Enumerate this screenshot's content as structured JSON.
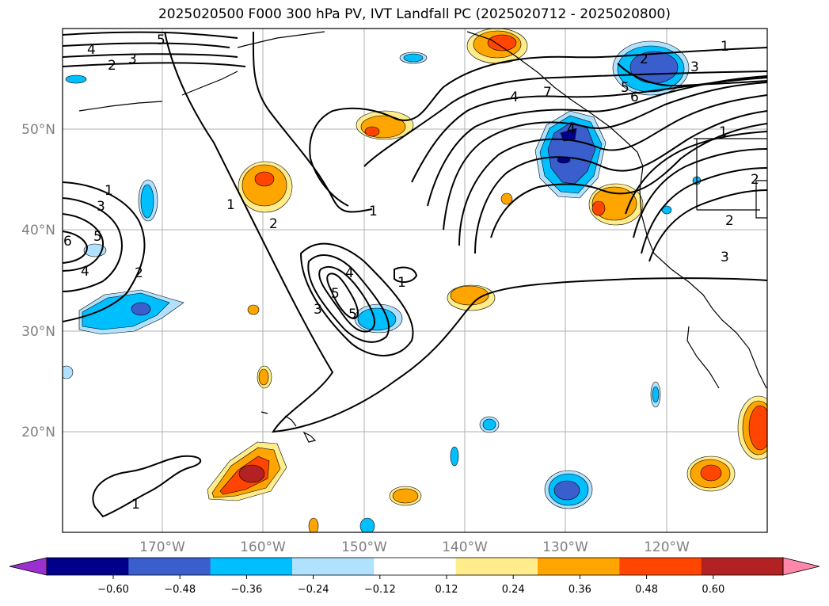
{
  "title": "2025020500 F000 300 hPa PV, IVT Landfall PC (2025020712 - 2025020800)",
  "map": {
    "lat_ticks": [
      "50°N",
      "40°N",
      "30°N",
      "20°N"
    ],
    "lon_ticks": [
      "170°W",
      "160°W",
      "150°W",
      "140°W",
      "130°W",
      "120°W"
    ],
    "contour_labels": [
      "4",
      "5",
      "3",
      "2",
      "5",
      "1",
      "1",
      "2",
      "3",
      "4",
      "6",
      "5",
      "4",
      "2",
      "1",
      "2",
      "4",
      "5",
      "3",
      "1",
      "1",
      "4",
      "7",
      "2",
      "3",
      "5",
      "6",
      "1",
      "1",
      "2",
      "3"
    ]
  },
  "colorbar": {
    "ticks": [
      "−0.60",
      "−0.48",
      "−0.36",
      "−0.24",
      "−0.12",
      "0.12",
      "0.24",
      "0.36",
      "0.48",
      "0.60"
    ],
    "colors": [
      "#9b30d0",
      "#00008b",
      "#3a5fcd",
      "#00bfff",
      "#b0e2ff",
      "#ffffff",
      "#ffec8b",
      "#ffa500",
      "#ff4500",
      "#b22222",
      "#ff88aa"
    ]
  }
}
